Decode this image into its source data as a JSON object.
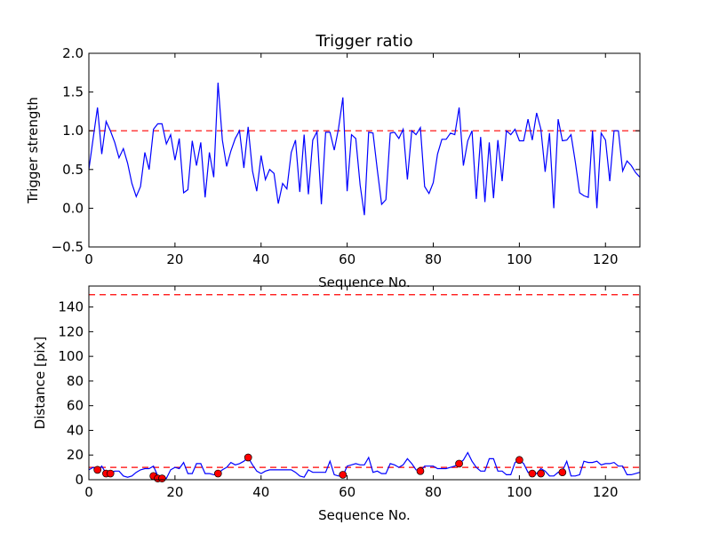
{
  "chart_data": [
    {
      "type": "line",
      "title": "Trigger ratio",
      "xlabel": "Sequence No.",
      "ylabel": "Trigger strength",
      "xlim": [
        0,
        128
      ],
      "ylim": [
        -0.5,
        2.0
      ],
      "xticks": [
        0,
        20,
        40,
        60,
        80,
        100,
        120
      ],
      "xtick_labels": [
        "0",
        "20",
        "40",
        "60",
        "80",
        "100",
        "120"
      ],
      "yticks": [
        -0.5,
        0.0,
        0.5,
        1.0,
        1.5,
        2.0
      ],
      "ytick_labels": [
        "−0.5",
        "0.0",
        "0.5",
        "1.0",
        "1.5",
        "2.0"
      ],
      "threshold": 1.0,
      "line_color": "#0000ff",
      "threshold_color": "#ff0000",
      "series": [
        {
          "name": "trigger strength",
          "x": [
            0,
            1,
            2,
            3,
            4,
            5,
            6,
            7,
            8,
            9,
            10,
            11,
            12,
            13,
            14,
            15,
            16,
            17,
            18,
            19,
            20,
            21,
            22,
            23,
            24,
            25,
            26,
            27,
            28,
            29,
            30,
            31,
            32,
            33,
            34,
            35,
            36,
            37,
            38,
            39,
            40,
            41,
            42,
            43,
            44,
            45,
            46,
            47,
            48,
            49,
            50,
            51,
            52,
            53,
            54,
            55,
            56,
            57,
            58,
            59,
            60,
            61,
            62,
            63,
            64,
            65,
            66,
            67,
            68,
            69,
            70,
            71,
            72,
            73,
            74,
            75,
            76,
            77,
            78,
            79,
            80,
            81,
            82,
            83,
            84,
            85,
            86,
            87,
            88,
            89,
            90,
            91,
            92,
            93,
            94,
            95,
            96,
            97,
            98,
            99,
            100,
            101,
            102,
            103,
            104,
            105,
            106,
            107,
            108,
            109,
            110,
            111,
            112,
            113,
            114,
            115,
            116,
            117,
            118,
            119,
            120,
            121,
            122,
            123,
            124,
            125,
            126,
            127,
            128
          ],
          "values": [
            0.5,
            0.9,
            1.3,
            0.7,
            1.12,
            1.0,
            0.85,
            0.65,
            0.77,
            0.58,
            0.32,
            0.15,
            0.28,
            0.72,
            0.5,
            1.02,
            1.09,
            1.09,
            0.83,
            0.95,
            0.62,
            0.9,
            0.2,
            0.24,
            0.87,
            0.55,
            0.85,
            0.14,
            0.72,
            0.4,
            1.62,
            0.88,
            0.54,
            0.74,
            0.9,
            1.0,
            0.52,
            1.05,
            0.48,
            0.22,
            0.68,
            0.37,
            0.5,
            0.45,
            0.06,
            0.32,
            0.25,
            0.72,
            0.88,
            0.21,
            0.95,
            0.18,
            0.88,
            0.99,
            0.05,
            0.98,
            0.98,
            0.75,
            1.03,
            1.43,
            0.22,
            0.95,
            0.9,
            0.3,
            -0.09,
            0.98,
            0.97,
            0.5,
            0.05,
            0.11,
            0.97,
            0.98,
            0.9,
            1.02,
            0.37,
            1.0,
            0.95,
            1.04,
            0.28,
            0.19,
            0.33,
            0.7,
            0.89,
            0.89,
            0.97,
            0.95,
            1.3,
            0.55,
            0.87,
            1.0,
            0.12,
            0.92,
            0.08,
            0.85,
            0.13,
            0.88,
            0.35,
            1.0,
            0.95,
            1.02,
            0.87,
            0.87,
            1.15,
            0.88,
            1.23,
            1.02,
            0.47,
            0.97,
            0.0,
            1.15,
            0.87,
            0.88,
            0.95,
            0.6,
            0.2,
            0.16,
            0.14,
            1.0,
            0.0,
            0.97,
            0.88,
            0.35,
            1.0,
            1.0,
            0.48,
            0.61,
            0.55,
            0.46,
            0.4
          ]
        }
      ]
    },
    {
      "type": "line",
      "title": "",
      "xlabel": "Sequence No.",
      "ylabel": "Distance [pix]",
      "xlim": [
        0,
        128
      ],
      "ylim": [
        0,
        157
      ],
      "xticks": [
        0,
        20,
        40,
        60,
        80,
        100,
        120
      ],
      "xtick_labels": [
        "0",
        "20",
        "40",
        "60",
        "80",
        "100",
        "120"
      ],
      "yticks": [
        0,
        20,
        40,
        60,
        80,
        100,
        120,
        140
      ],
      "ytick_labels": [
        "0",
        "20",
        "40",
        "60",
        "80",
        "100",
        "120",
        "140"
      ],
      "thresholds": [
        150,
        10
      ],
      "line_color": "#0000ff",
      "threshold_color": "#ff0000",
      "marker_color": "#ff0000",
      "series": [
        {
          "name": "distance",
          "x": [
            0,
            1,
            2,
            3,
            4,
            5,
            6,
            7,
            8,
            9,
            10,
            11,
            12,
            13,
            14,
            15,
            16,
            17,
            18,
            19,
            20,
            21,
            22,
            23,
            24,
            25,
            26,
            27,
            28,
            29,
            30,
            31,
            32,
            33,
            34,
            35,
            36,
            37,
            38,
            39,
            40,
            41,
            42,
            43,
            44,
            45,
            46,
            47,
            48,
            49,
            50,
            51,
            52,
            53,
            54,
            55,
            56,
            57,
            58,
            59,
            60,
            61,
            62,
            63,
            64,
            65,
            66,
            67,
            68,
            69,
            70,
            71,
            72,
            73,
            74,
            75,
            76,
            77,
            78,
            79,
            80,
            81,
            82,
            83,
            84,
            85,
            86,
            87,
            88,
            89,
            90,
            91,
            92,
            93,
            94,
            95,
            96,
            97,
            98,
            99,
            100,
            101,
            102,
            103,
            104,
            105,
            106,
            107,
            108,
            109,
            110,
            111,
            112,
            113,
            114,
            115,
            116,
            117,
            118,
            119,
            120,
            121,
            122,
            123,
            124,
            125,
            126,
            127,
            128
          ],
          "values": [
            8,
            10,
            7,
            11,
            5,
            5,
            7,
            7,
            3,
            2,
            3,
            6,
            8,
            9,
            9,
            11,
            3,
            3,
            1,
            8,
            10,
            9,
            14,
            5,
            5,
            13,
            13,
            5,
            5,
            4,
            5,
            8,
            10,
            14,
            12,
            13,
            15,
            18,
            12,
            7,
            5,
            7,
            8,
            8,
            8,
            8,
            8,
            8,
            6,
            3,
            2,
            8,
            6,
            6,
            6,
            6,
            15,
            4,
            3,
            3,
            11,
            12,
            13,
            12,
            12,
            18,
            6,
            7,
            5,
            5,
            13,
            12,
            10,
            12,
            17,
            13,
            8,
            7,
            11,
            11,
            11,
            9,
            9,
            9,
            10,
            11,
            13,
            16,
            22,
            15,
            10,
            7,
            7,
            17,
            17,
            7,
            7,
            4,
            4,
            14,
            16,
            13,
            6,
            5,
            5,
            9,
            7,
            3,
            3,
            6,
            7,
            15,
            3,
            3,
            4,
            15,
            14,
            14,
            15,
            12,
            13,
            13,
            14,
            11,
            11,
            4,
            4,
            5,
            6
          ]
        },
        {
          "name": "detections",
          "marker": "circle",
          "x": [
            2,
            4,
            5,
            15,
            16,
            17,
            30,
            37,
            59,
            77,
            86,
            100,
            103,
            105,
            110
          ],
          "values": [
            8,
            5,
            5,
            3,
            1,
            1,
            5,
            18,
            4,
            7,
            13,
            16,
            5,
            5,
            6
          ]
        }
      ]
    }
  ]
}
